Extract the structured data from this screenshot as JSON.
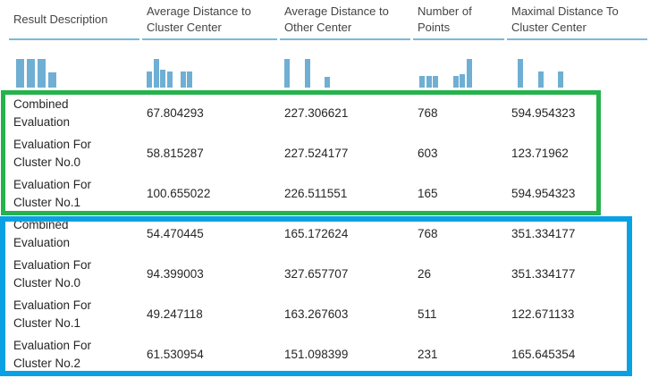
{
  "header": {
    "columns": [
      "Result Description",
      "Average Distance to Cluster Center",
      "Average Distance to Other Center",
      "Number of Points",
      "Maximal Distance To Cluster Center"
    ]
  },
  "sparklines": {
    "result_description": [
      1,
      1,
      1,
      0.52
    ],
    "avg_distance_cluster": [
      0.55,
      1,
      0.62,
      0.55,
      0,
      0.55,
      0.55
    ],
    "avg_distance_other": [
      1,
      0,
      0,
      1,
      0,
      0,
      0.36
    ],
    "number_of_points": [
      0.42,
      0.42,
      0.42,
      0,
      0,
      0.42,
      0.48,
      1
    ],
    "max_distance_cluster": [
      1,
      0,
      0,
      0.55,
      0,
      0,
      0.55
    ]
  },
  "rows": [
    {
      "desc": "Combined Evaluation",
      "avg_cluster": "67.804293",
      "avg_other": "227.306621",
      "points": "768",
      "max_dist": "594.954323"
    },
    {
      "desc": "Evaluation For Cluster No.0",
      "avg_cluster": "58.815287",
      "avg_other": "227.524177",
      "points": "603",
      "max_dist": "123.71962"
    },
    {
      "desc": "Evaluation For Cluster No.1",
      "avg_cluster": "100.655022",
      "avg_other": "226.511551",
      "points": "165",
      "max_dist": "594.954323"
    },
    {
      "desc": "Combined Evaluation",
      "avg_cluster": "54.470445",
      "avg_other": "165.172624",
      "points": "768",
      "max_dist": "351.334177"
    },
    {
      "desc": "Evaluation For Cluster No.0",
      "avg_cluster": "94.399003",
      "avg_other": "327.657707",
      "points": "26",
      "max_dist": "351.334177"
    },
    {
      "desc": "Evaluation For Cluster No.1",
      "avg_cluster": "49.247118",
      "avg_other": "163.267603",
      "points": "511",
      "max_dist": "122.671133"
    },
    {
      "desc": "Evaluation For Cluster No.2",
      "avg_cluster": "61.530954",
      "avg_other": "151.098399",
      "points": "231",
      "max_dist": "165.645354"
    }
  ],
  "annotations": {
    "green_box": {
      "rows_enclosed": "1-3",
      "color": "#26b24c"
    },
    "blue_box": {
      "rows_enclosed": "4-7",
      "color": "#0aa1e4"
    }
  },
  "colors": {
    "sparkline_bar": "#6fafd3",
    "header_rule": "#7ab9da",
    "text": "#262626"
  }
}
